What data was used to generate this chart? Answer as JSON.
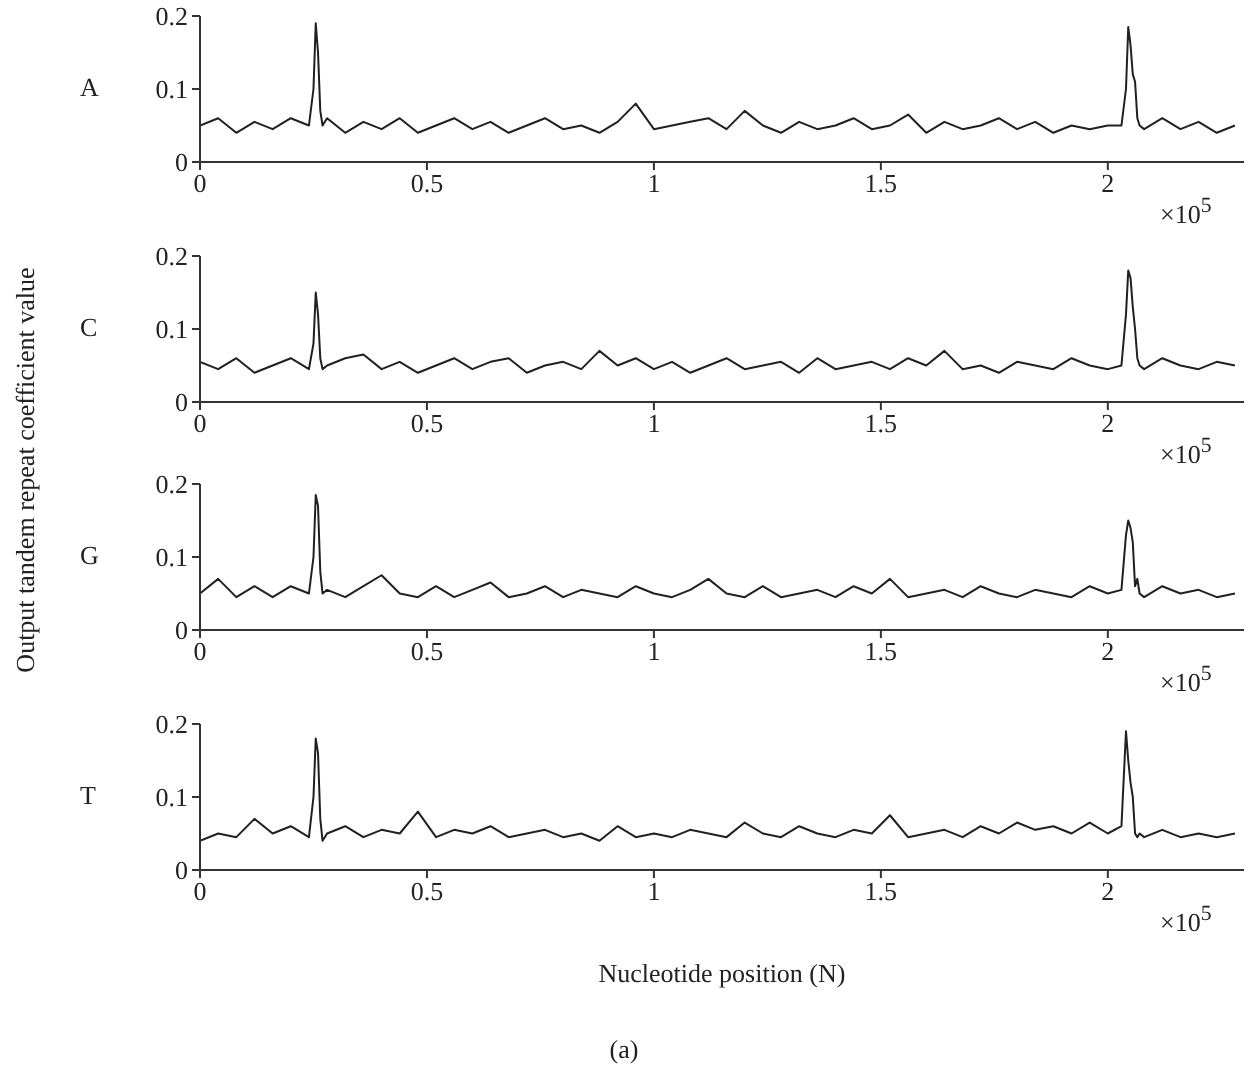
{
  "chart_data": [
    {
      "type": "line",
      "title": "A",
      "ylim": [
        0,
        0.2
      ],
      "yticks": [
        0,
        0.1,
        0.2
      ],
      "xlim": [
        0,
        2.3
      ],
      "xticks": [
        0,
        0.5,
        1,
        1.5,
        2
      ],
      "annotations": [
        "×10$^{5}$"
      ],
      "x": [
        0,
        0.04,
        0.08,
        0.12,
        0.16,
        0.2,
        0.24,
        0.25,
        0.255,
        0.26,
        0.265,
        0.27,
        0.28,
        0.32,
        0.36,
        0.4,
        0.44,
        0.48,
        0.52,
        0.56,
        0.6,
        0.64,
        0.68,
        0.72,
        0.76,
        0.8,
        0.84,
        0.88,
        0.92,
        0.96,
        1,
        1.04,
        1.08,
        1.12,
        1.16,
        1.2,
        1.24,
        1.28,
        1.32,
        1.36,
        1.4,
        1.44,
        1.48,
        1.52,
        1.56,
        1.6,
        1.64,
        1.68,
        1.72,
        1.76,
        1.8,
        1.84,
        1.88,
        1.92,
        1.96,
        2,
        2.03,
        2.04,
        2.045,
        2.05,
        2.055,
        2.06,
        2.065,
        2.07,
        2.08,
        2.12,
        2.16,
        2.2,
        2.24,
        2.28
      ],
      "series": [
        {
          "color": "#231f20",
          "values": [
            0.05,
            0.06,
            0.04,
            0.055,
            0.045,
            0.06,
            0.05,
            0.1,
            0.19,
            0.15,
            0.07,
            0.05,
            0.06,
            0.04,
            0.055,
            0.045,
            0.06,
            0.04,
            0.05,
            0.06,
            0.045,
            0.055,
            0.04,
            0.05,
            0.06,
            0.045,
            0.05,
            0.04,
            0.055,
            0.08,
            0.045,
            0.05,
            0.055,
            0.06,
            0.045,
            0.07,
            0.05,
            0.04,
            0.055,
            0.045,
            0.05,
            0.06,
            0.045,
            0.05,
            0.065,
            0.04,
            0.055,
            0.045,
            0.05,
            0.06,
            0.045,
            0.055,
            0.04,
            0.05,
            0.045,
            0.05,
            0.05,
            0.1,
            0.185,
            0.16,
            0.12,
            0.11,
            0.06,
            0.05,
            0.045,
            0.06,
            0.045,
            0.055,
            0.04,
            0.05
          ]
        }
      ]
    },
    {
      "type": "line",
      "title": "C",
      "ylabel": "Output tandem repeat coefficient value",
      "ylim": [
        0,
        0.2
      ],
      "yticks": [
        0,
        0.1,
        0.2
      ],
      "xlim": [
        0,
        2.3
      ],
      "xticks": [
        0,
        0.5,
        1,
        1.5,
        2
      ],
      "annotations": [
        "×10$^{5}$"
      ],
      "x": [
        0,
        0.04,
        0.08,
        0.12,
        0.16,
        0.2,
        0.24,
        0.25,
        0.255,
        0.26,
        0.265,
        0.27,
        0.28,
        0.32,
        0.36,
        0.4,
        0.44,
        0.48,
        0.52,
        0.56,
        0.6,
        0.64,
        0.68,
        0.72,
        0.76,
        0.8,
        0.84,
        0.88,
        0.92,
        0.96,
        1,
        1.04,
        1.08,
        1.12,
        1.16,
        1.2,
        1.24,
        1.28,
        1.32,
        1.36,
        1.4,
        1.44,
        1.48,
        1.52,
        1.56,
        1.6,
        1.64,
        1.68,
        1.72,
        1.76,
        1.8,
        1.84,
        1.88,
        1.92,
        1.96,
        2,
        2.03,
        2.04,
        2.045,
        2.05,
        2.055,
        2.06,
        2.065,
        2.07,
        2.08,
        2.12,
        2.16,
        2.2,
        2.24,
        2.28
      ],
      "series": [
        {
          "color": "#231f20",
          "values": [
            0.055,
            0.045,
            0.06,
            0.04,
            0.05,
            0.06,
            0.045,
            0.08,
            0.15,
            0.12,
            0.06,
            0.045,
            0.05,
            0.06,
            0.065,
            0.045,
            0.055,
            0.04,
            0.05,
            0.06,
            0.045,
            0.055,
            0.06,
            0.04,
            0.05,
            0.055,
            0.045,
            0.07,
            0.05,
            0.06,
            0.045,
            0.055,
            0.04,
            0.05,
            0.06,
            0.045,
            0.05,
            0.055,
            0.04,
            0.06,
            0.045,
            0.05,
            0.055,
            0.045,
            0.06,
            0.05,
            0.07,
            0.045,
            0.05,
            0.04,
            0.055,
            0.05,
            0.045,
            0.06,
            0.05,
            0.045,
            0.05,
            0.12,
            0.18,
            0.17,
            0.13,
            0.1,
            0.06,
            0.05,
            0.045,
            0.06,
            0.05,
            0.045,
            0.055,
            0.05
          ]
        }
      ]
    },
    {
      "type": "line",
      "title": "G",
      "ylim": [
        0,
        0.2
      ],
      "yticks": [
        0,
        0.1,
        0.2
      ],
      "xlim": [
        0,
        2.3
      ],
      "xticks": [
        0,
        0.5,
        1,
        1.5,
        2
      ],
      "annotations": [
        "×10$^{5}$"
      ],
      "x": [
        0,
        0.04,
        0.08,
        0.12,
        0.16,
        0.2,
        0.24,
        0.25,
        0.255,
        0.26,
        0.265,
        0.27,
        0.28,
        0.32,
        0.36,
        0.4,
        0.44,
        0.48,
        0.52,
        0.56,
        0.6,
        0.64,
        0.68,
        0.72,
        0.76,
        0.8,
        0.84,
        0.88,
        0.92,
        0.96,
        1,
        1.04,
        1.08,
        1.12,
        1.16,
        1.2,
        1.24,
        1.28,
        1.32,
        1.36,
        1.4,
        1.44,
        1.48,
        1.52,
        1.56,
        1.6,
        1.64,
        1.68,
        1.72,
        1.76,
        1.8,
        1.84,
        1.88,
        1.92,
        1.96,
        2,
        2.03,
        2.04,
        2.045,
        2.05,
        2.055,
        2.06,
        2.065,
        2.07,
        2.08,
        2.12,
        2.16,
        2.2,
        2.24,
        2.28
      ],
      "series": [
        {
          "color": "#231f20",
          "values": [
            0.05,
            0.07,
            0.045,
            0.06,
            0.045,
            0.06,
            0.05,
            0.1,
            0.185,
            0.17,
            0.08,
            0.05,
            0.055,
            0.045,
            0.06,
            0.075,
            0.05,
            0.045,
            0.06,
            0.045,
            0.055,
            0.065,
            0.045,
            0.05,
            0.06,
            0.045,
            0.055,
            0.05,
            0.045,
            0.06,
            0.05,
            0.045,
            0.055,
            0.07,
            0.05,
            0.045,
            0.06,
            0.045,
            0.05,
            0.055,
            0.045,
            0.06,
            0.05,
            0.07,
            0.045,
            0.05,
            0.055,
            0.045,
            0.06,
            0.05,
            0.045,
            0.055,
            0.05,
            0.045,
            0.06,
            0.05,
            0.055,
            0.13,
            0.15,
            0.14,
            0.12,
            0.06,
            0.07,
            0.05,
            0.045,
            0.06,
            0.05,
            0.055,
            0.045,
            0.05
          ]
        }
      ]
    },
    {
      "type": "line",
      "title": "T",
      "xlabel": "Nucleotide position (N)",
      "ylim": [
        0,
        0.2
      ],
      "yticks": [
        0,
        0.1,
        0.2
      ],
      "xlim": [
        0,
        2.3
      ],
      "xticks": [
        0,
        0.5,
        1,
        1.5,
        2
      ],
      "annotations": [
        "×10$^{5}$",
        "(a)"
      ],
      "x": [
        0,
        0.04,
        0.08,
        0.12,
        0.16,
        0.2,
        0.24,
        0.25,
        0.255,
        0.26,
        0.265,
        0.27,
        0.28,
        0.32,
        0.36,
        0.4,
        0.44,
        0.48,
        0.52,
        0.56,
        0.6,
        0.64,
        0.68,
        0.72,
        0.76,
        0.8,
        0.84,
        0.88,
        0.92,
        0.96,
        1,
        1.04,
        1.08,
        1.12,
        1.16,
        1.2,
        1.24,
        1.28,
        1.32,
        1.36,
        1.4,
        1.44,
        1.48,
        1.52,
        1.56,
        1.6,
        1.64,
        1.68,
        1.72,
        1.76,
        1.8,
        1.84,
        1.88,
        1.92,
        1.96,
        2,
        2.03,
        2.04,
        2.045,
        2.05,
        2.055,
        2.06,
        2.065,
        2.07,
        2.08,
        2.12,
        2.16,
        2.2,
        2.24,
        2.28
      ],
      "series": [
        {
          "color": "#231f20",
          "values": [
            0.04,
            0.05,
            0.045,
            0.07,
            0.05,
            0.06,
            0.045,
            0.1,
            0.18,
            0.16,
            0.07,
            0.04,
            0.05,
            0.06,
            0.045,
            0.055,
            0.05,
            0.08,
            0.045,
            0.055,
            0.05,
            0.06,
            0.045,
            0.05,
            0.055,
            0.045,
            0.05,
            0.04,
            0.06,
            0.045,
            0.05,
            0.045,
            0.055,
            0.05,
            0.045,
            0.065,
            0.05,
            0.045,
            0.06,
            0.05,
            0.045,
            0.055,
            0.05,
            0.075,
            0.045,
            0.05,
            0.055,
            0.045,
            0.06,
            0.05,
            0.065,
            0.055,
            0.06,
            0.05,
            0.065,
            0.05,
            0.06,
            0.19,
            0.15,
            0.12,
            0.1,
            0.05,
            0.045,
            0.05,
            0.045,
            0.055,
            0.045,
            0.05,
            0.045,
            0.05
          ]
        }
      ]
    }
  ]
}
